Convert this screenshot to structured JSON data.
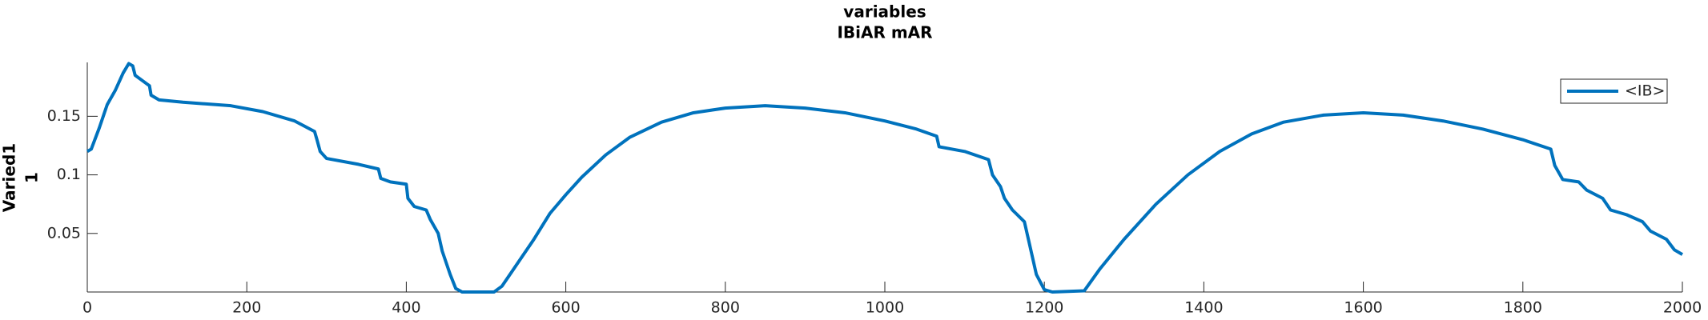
{
  "chart_data": {
    "type": "line",
    "title": [
      "variables",
      "IBiAR mAR"
    ],
    "ylabel": [
      "Varied1",
      "1"
    ],
    "x": [
      0,
      5,
      15,
      25,
      35,
      45,
      52,
      57,
      60,
      70,
      78,
      80,
      90,
      120,
      180,
      220,
      260,
      285,
      288,
      292,
      300,
      340,
      365,
      368,
      380,
      400,
      402,
      410,
      425,
      430,
      440,
      445,
      455,
      462,
      470,
      510,
      520,
      540,
      560,
      580,
      600,
      620,
      650,
      680,
      720,
      760,
      800,
      850,
      900,
      950,
      1000,
      1040,
      1065,
      1068,
      1100,
      1130,
      1135,
      1145,
      1150,
      1160,
      1175,
      1180,
      1190,
      1200,
      1210,
      1250,
      1270,
      1300,
      1340,
      1380,
      1420,
      1460,
      1500,
      1550,
      1600,
      1650,
      1700,
      1750,
      1800,
      1835,
      1840,
      1850,
      1870,
      1880,
      1900,
      1910,
      1930,
      1950,
      1960,
      1980,
      1990,
      2000
    ],
    "series": [
      {
        "name": "<IB>",
        "color": "#0072bd",
        "values": [
          0.12,
          0.122,
          0.14,
          0.16,
          0.172,
          0.187,
          0.195,
          0.193,
          0.185,
          0.18,
          0.176,
          0.168,
          0.164,
          0.162,
          0.159,
          0.154,
          0.146,
          0.137,
          0.13,
          0.12,
          0.114,
          0.109,
          0.105,
          0.097,
          0.094,
          0.092,
          0.08,
          0.073,
          0.07,
          0.062,
          0.05,
          0.035,
          0.015,
          0.003,
          0,
          0,
          0.005,
          0.025,
          0.045,
          0.067,
          0.083,
          0.098,
          0.117,
          0.132,
          0.145,
          0.153,
          0.157,
          0.159,
          0.157,
          0.153,
          0.146,
          0.139,
          0.133,
          0.124,
          0.12,
          0.113,
          0.1,
          0.09,
          0.08,
          0.07,
          0.06,
          0.045,
          0.015,
          0.002,
          0,
          0.001,
          0.02,
          0.045,
          0.075,
          0.1,
          0.12,
          0.135,
          0.145,
          0.151,
          0.153,
          0.151,
          0.146,
          0.139,
          0.13,
          0.122,
          0.108,
          0.096,
          0.094,
          0.087,
          0.08,
          0.07,
          0.066,
          0.06,
          0.052,
          0.045,
          0.036,
          0.032
        ]
      }
    ],
    "xlim": [
      0,
      2000
    ],
    "xticks": [
      0,
      200,
      400,
      600,
      800,
      1000,
      1200,
      1400,
      1600,
      1800,
      2000
    ],
    "ylim": [
      0,
      0.196
    ],
    "yticks": [
      0.05,
      0.1,
      0.15
    ],
    "legend": "upper right"
  }
}
